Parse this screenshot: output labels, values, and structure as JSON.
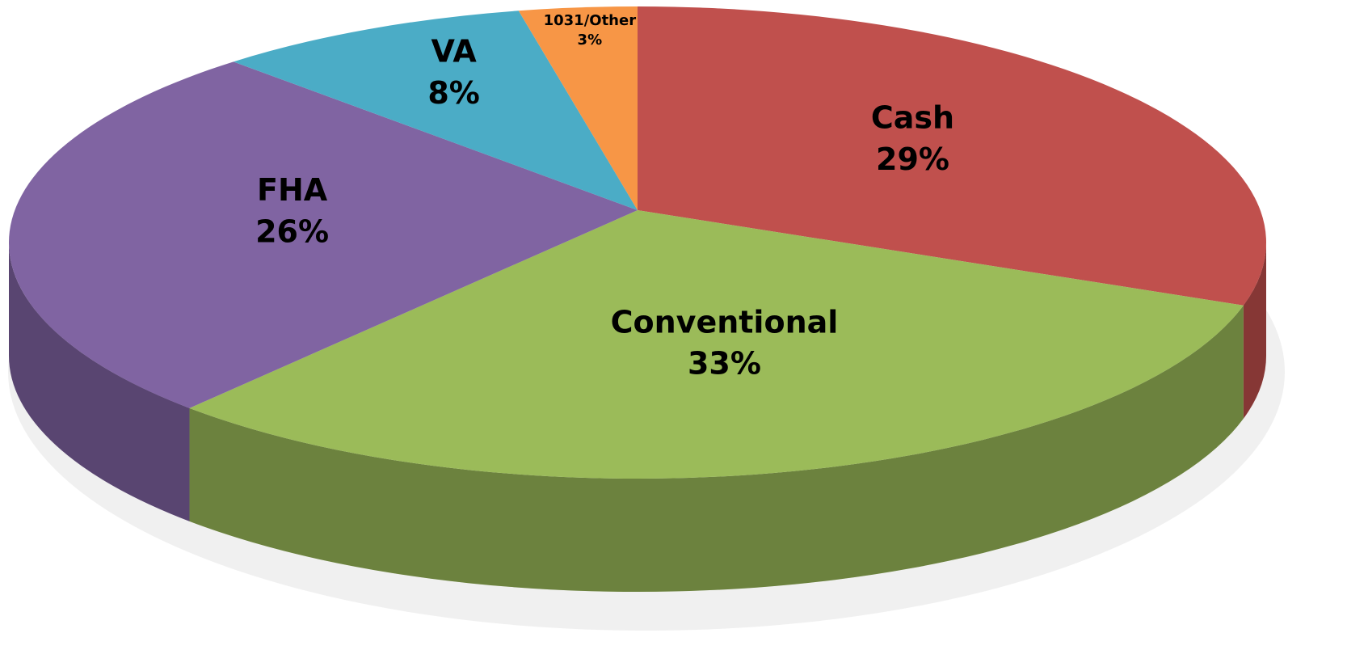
{
  "chart_data": {
    "type": "pie",
    "categories": [
      "Cash",
      "Conventional",
      "FHA",
      "VA",
      "1031/Other"
    ],
    "values": [
      29,
      33,
      26,
      8,
      3
    ],
    "value_labels": [
      "29%",
      "33%",
      "26%",
      "8%",
      "3%"
    ],
    "colors": [
      "#c0504d",
      "#9bbb59",
      "#8064a2",
      "#4bacc6",
      "#f79646"
    ]
  }
}
